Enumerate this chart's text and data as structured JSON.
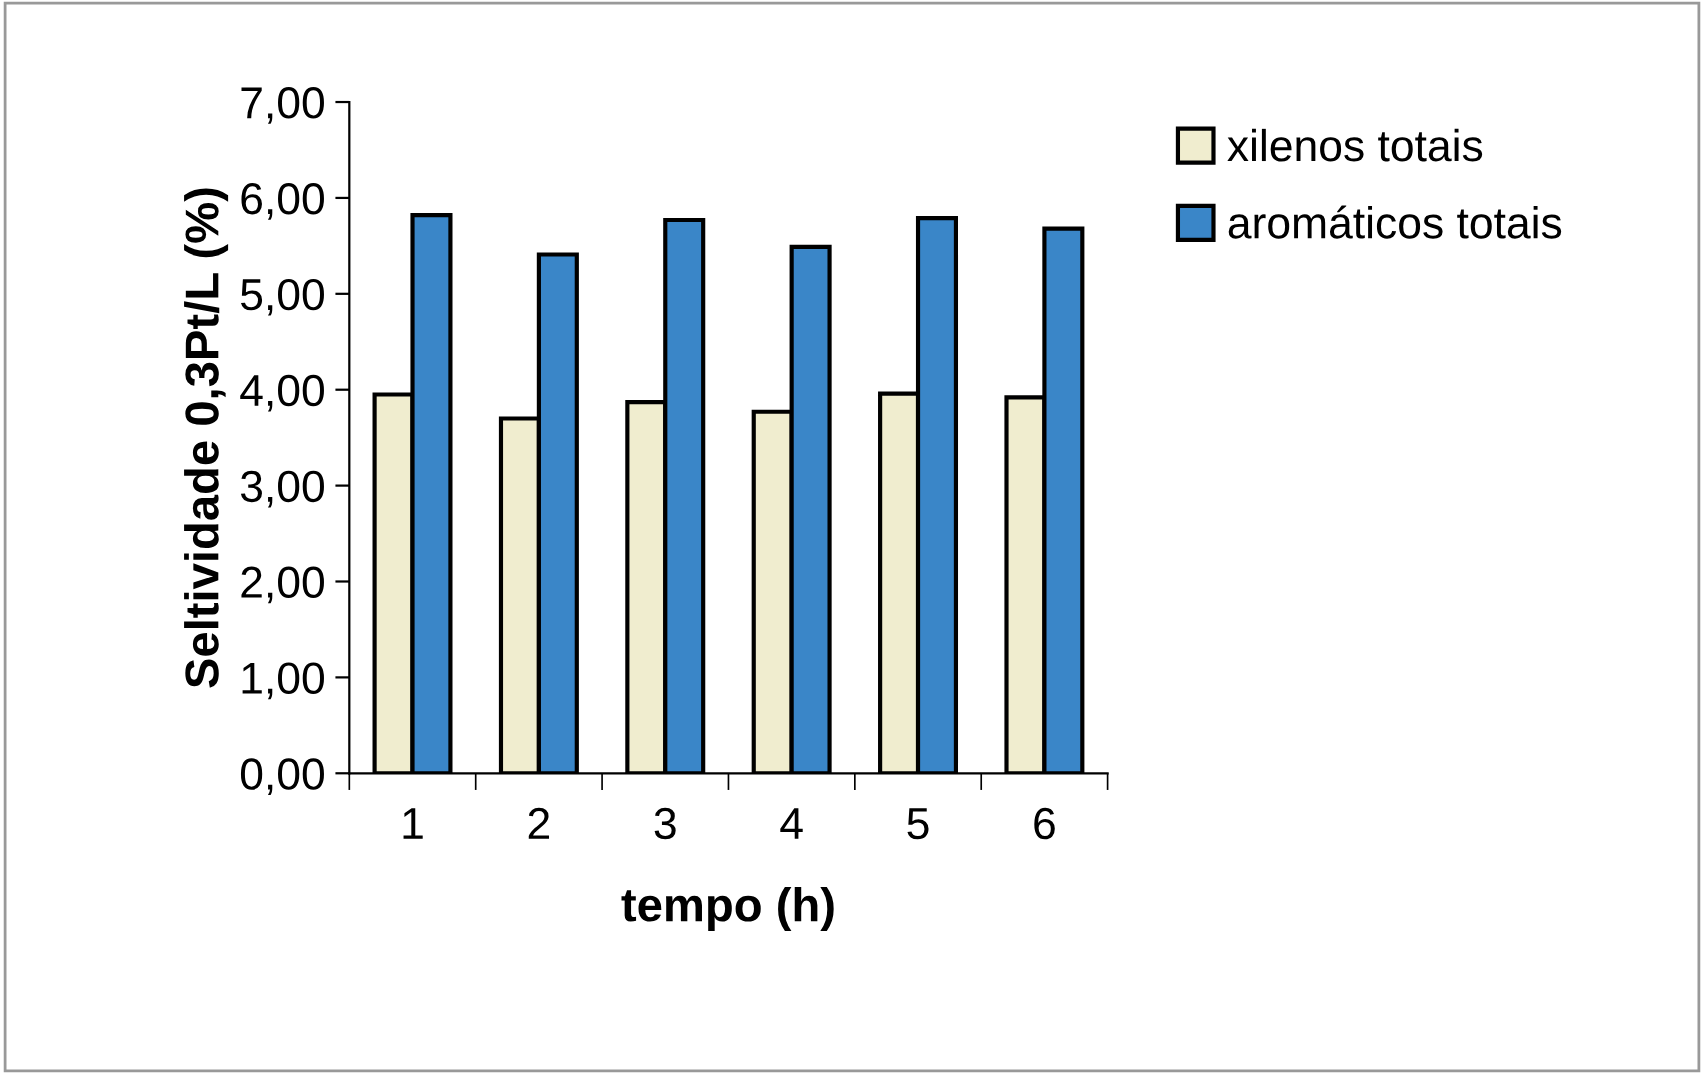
{
  "chart_data": {
    "type": "bar",
    "xlabel": "tempo (h)",
    "ylabel": "Seltividade 0,3Pt/L (%)",
    "categories": [
      "1",
      "2",
      "3",
      "4",
      "5",
      "6"
    ],
    "series": [
      {
        "name": "xilenos totais",
        "color": "#f0edcf",
        "values": [
          3.95,
          3.7,
          3.87,
          3.77,
          3.96,
          3.92
        ]
      },
      {
        "name": "aromáticos totais",
        "color": "#3a86c8",
        "values": [
          5.82,
          5.41,
          5.77,
          5.49,
          5.79,
          5.68
        ]
      }
    ],
    "ylim": [
      0,
      7
    ],
    "yticks": [
      {
        "value": 0,
        "label": "0,00"
      },
      {
        "value": 1,
        "label": "1,00"
      },
      {
        "value": 2,
        "label": "2,00"
      },
      {
        "value": 3,
        "label": "3,00"
      },
      {
        "value": 4,
        "label": "4,00"
      },
      {
        "value": 5,
        "label": "5,00"
      },
      {
        "value": 6,
        "label": "6,00"
      },
      {
        "value": 7,
        "label": "7,00"
      }
    ],
    "grid": false,
    "legend": "right"
  }
}
